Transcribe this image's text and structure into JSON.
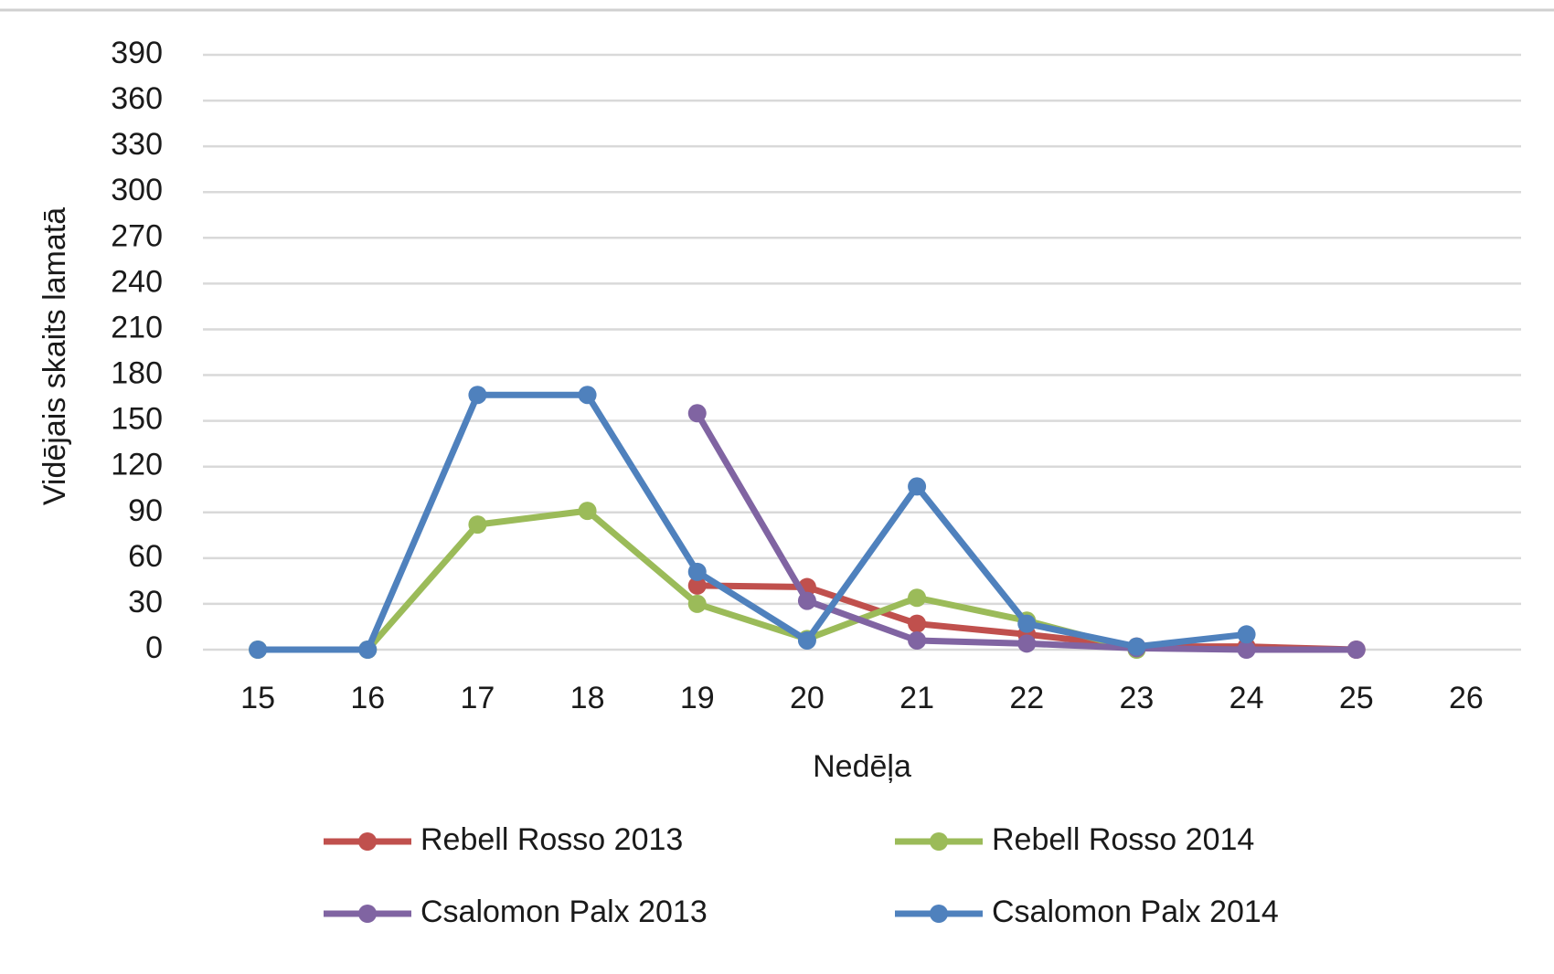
{
  "chart_data": {
    "type": "line",
    "y_label": "Vidējais skaits lamatā",
    "x_label": "Nedēļa",
    "categories": [
      "15",
      "16",
      "17",
      "18",
      "19",
      "20",
      "21",
      "22",
      "23",
      "24",
      "25",
      "26"
    ],
    "ylim": [
      0,
      390
    ],
    "yticks": [
      0,
      30,
      60,
      90,
      120,
      150,
      180,
      210,
      240,
      270,
      300,
      330,
      360,
      390
    ],
    "grid": true,
    "legend": "bottom",
    "series": [
      {
        "name": "Rebell Rosso 2013",
        "color": "#c0504d",
        "values": [
          null,
          null,
          null,
          null,
          42,
          41,
          17,
          10,
          2,
          2,
          0,
          null
        ]
      },
      {
        "name": "Rebell Rosso 2014",
        "color": "#9bbb59",
        "values": [
          0,
          0,
          82,
          91,
          30,
          7,
          34,
          19,
          0,
          null,
          null,
          null
        ]
      },
      {
        "name": "Csalomon Palx 2013",
        "color": "#8064a2",
        "values": [
          null,
          null,
          null,
          null,
          155,
          32,
          6,
          4,
          1,
          0,
          0,
          null
        ]
      },
      {
        "name": "Csalomon Palx 2014",
        "color": "#4f81bd",
        "values": [
          0,
          0,
          167,
          167,
          51,
          6,
          107,
          17,
          2,
          10,
          null,
          null
        ]
      }
    ]
  }
}
